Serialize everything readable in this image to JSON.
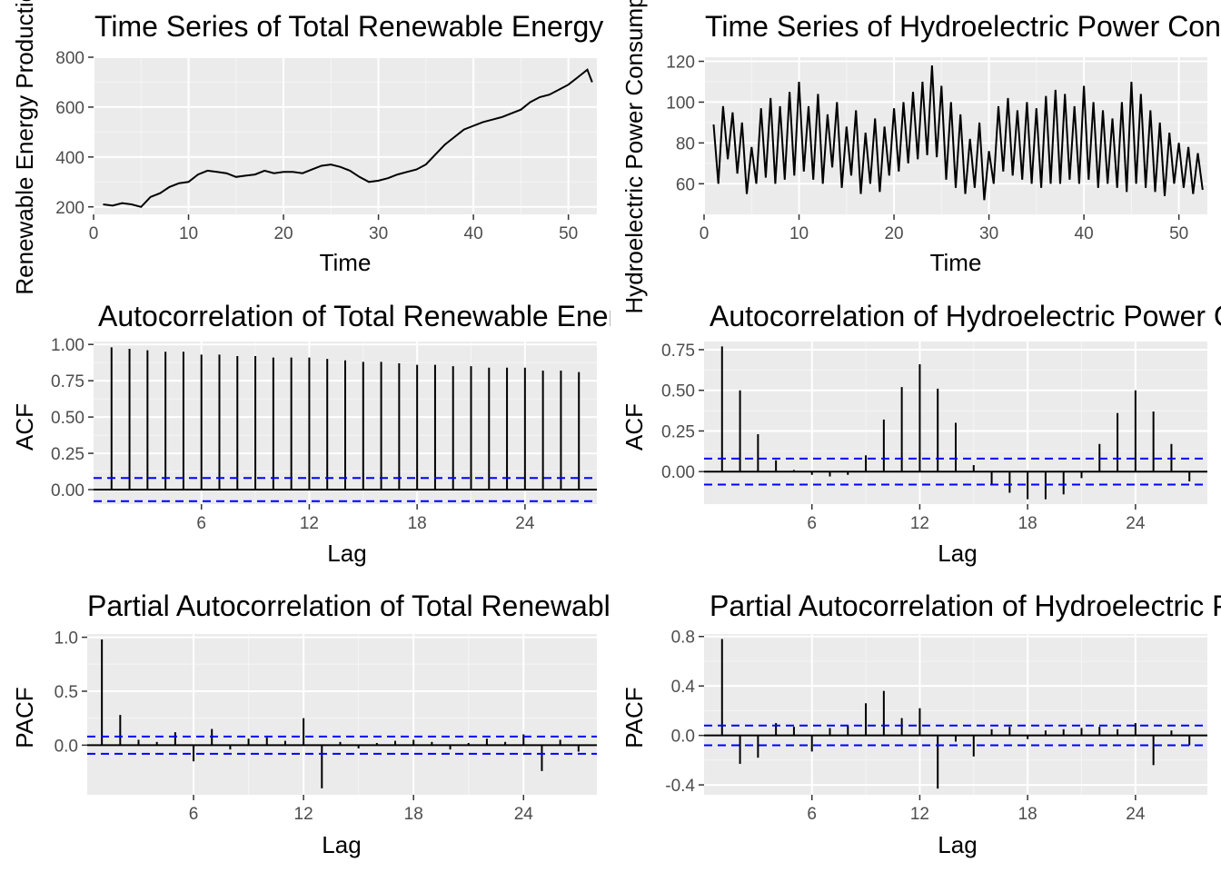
{
  "chart_data": [
    {
      "id": "ts_total",
      "type": "line",
      "title": "Time Series of Total Renewable Energy Production",
      "xlabel": "Time",
      "ylabel": "Renewable Energy Production",
      "xlim": [
        0,
        53
      ],
      "ylim": [
        170,
        800
      ],
      "xticks": [
        0,
        10,
        20,
        30,
        40,
        50
      ],
      "yticks": [
        200,
        400,
        600,
        800
      ],
      "series": [
        {
          "x": [
            1,
            2,
            3,
            4,
            5,
            6,
            7,
            8,
            9,
            10,
            11,
            12,
            13,
            14,
            15,
            16,
            17,
            18,
            19,
            20,
            21,
            22,
            23,
            24,
            25,
            26,
            27,
            28,
            29,
            30,
            31,
            32,
            33,
            34,
            35,
            36,
            37,
            38,
            39,
            40,
            41,
            42,
            43,
            44,
            45,
            46,
            47,
            48,
            49,
            50,
            51,
            52,
            52.5
          ],
          "values": [
            210,
            205,
            215,
            210,
            200,
            240,
            255,
            280,
            295,
            300,
            330,
            345,
            340,
            335,
            320,
            325,
            330,
            345,
            335,
            340,
            340,
            335,
            350,
            365,
            370,
            360,
            345,
            320,
            300,
            305,
            315,
            330,
            340,
            350,
            370,
            410,
            450,
            480,
            510,
            525,
            540,
            550,
            560,
            575,
            590,
            620,
            640,
            650,
            670,
            690,
            720,
            750,
            700
          ]
        }
      ]
    },
    {
      "id": "ts_hydro",
      "type": "line",
      "title": "Time Series of Hydroelectric Power Consumption",
      "xlabel": "Time",
      "ylabel": "Hydroelectric Power Consumption",
      "xlim": [
        0,
        53
      ],
      "ylim": [
        45,
        122
      ],
      "xticks": [
        0,
        10,
        20,
        30,
        40,
        50
      ],
      "yticks": [
        60,
        80,
        100,
        120
      ],
      "series": [
        {
          "x": [
            1,
            1.5,
            2,
            2.5,
            3,
            3.5,
            4,
            4.5,
            5,
            5.5,
            6,
            6.5,
            7,
            7.5,
            8,
            8.5,
            9,
            9.5,
            10,
            10.5,
            11,
            11.5,
            12,
            12.5,
            13,
            13.5,
            14,
            14.5,
            15,
            15.5,
            16,
            16.5,
            17,
            17.5,
            18,
            18.5,
            19,
            19.5,
            20,
            20.5,
            21,
            21.5,
            22,
            22.5,
            23,
            23.5,
            24,
            24.5,
            25,
            25.5,
            26,
            26.5,
            27,
            27.5,
            28,
            28.5,
            29,
            29.5,
            30,
            30.5,
            31,
            31.5,
            32,
            32.5,
            33,
            33.5,
            34,
            34.5,
            35,
            35.5,
            36,
            36.5,
            37,
            37.5,
            38,
            38.5,
            39,
            39.5,
            40,
            40.5,
            41,
            41.5,
            42,
            42.5,
            43,
            43.5,
            44,
            44.5,
            45,
            45.5,
            46,
            46.5,
            47,
            47.5,
            48,
            48.5,
            49,
            49.5,
            50,
            50.5,
            51,
            51.5,
            52,
            52.5
          ],
          "values": [
            89,
            60,
            98,
            72,
            95,
            65,
            90,
            55,
            78,
            60,
            97,
            63,
            102,
            60,
            98,
            62,
            105,
            64,
            110,
            66,
            98,
            62,
            104,
            60,
            94,
            68,
            100,
            58,
            88,
            64,
            96,
            55,
            85,
            60,
            92,
            56,
            88,
            64,
            97,
            66,
            100,
            70,
            105,
            72,
            110,
            74,
            118,
            73,
            108,
            62,
            100,
            58,
            94,
            55,
            82,
            58,
            90,
            52,
            76,
            60,
            98,
            66,
            102,
            64,
            96,
            62,
            100,
            60,
            97,
            58,
            103,
            60,
            106,
            60,
            104,
            62,
            98,
            60,
            108,
            62,
            100,
            58,
            96,
            60,
            92,
            58,
            100,
            56,
            110,
            60,
            104,
            58,
            96,
            56,
            90,
            54,
            85,
            60,
            80,
            58,
            78,
            55,
            75,
            57
          ]
        }
      ]
    },
    {
      "id": "acf_total",
      "type": "bar",
      "title": "Autocorrelation of Total Renewable Energy Production",
      "xlabel": "Lag",
      "ylabel": "ACF",
      "xlim": [
        0,
        28
      ],
      "ylim": [
        -0.1,
        1.02
      ],
      "xticks": [
        6,
        12,
        18,
        24
      ],
      "yticks": [
        0,
        0.25,
        0.5,
        0.75,
        1
      ],
      "ytick_labels": [
        "0.00",
        "0.25",
        "0.50",
        "0.75",
        "1.00"
      ],
      "conf": 0.08,
      "lags": [
        1,
        2,
        3,
        4,
        5,
        6,
        7,
        8,
        9,
        10,
        11,
        12,
        13,
        14,
        15,
        16,
        17,
        18,
        19,
        20,
        21,
        22,
        23,
        24,
        25,
        26,
        27
      ],
      "values": [
        0.98,
        0.97,
        0.96,
        0.95,
        0.95,
        0.93,
        0.93,
        0.92,
        0.92,
        0.91,
        0.91,
        0.91,
        0.9,
        0.89,
        0.88,
        0.88,
        0.87,
        0.86,
        0.86,
        0.85,
        0.85,
        0.84,
        0.84,
        0.84,
        0.82,
        0.82,
        0.81
      ]
    },
    {
      "id": "acf_hydro",
      "type": "bar",
      "title": "Autocorrelation of Hydroelectric Power Consumption",
      "xlabel": "Lag",
      "ylabel": "ACF",
      "xlim": [
        0,
        28
      ],
      "ylim": [
        -0.2,
        0.8
      ],
      "xticks": [
        6,
        12,
        18,
        24
      ],
      "yticks": [
        0,
        0.25,
        0.5,
        0.75
      ],
      "ytick_labels": [
        "0.00",
        "0.25",
        "0.50",
        "0.75"
      ],
      "conf": 0.08,
      "lags": [
        1,
        2,
        3,
        4,
        5,
        6,
        7,
        8,
        9,
        10,
        11,
        12,
        13,
        14,
        15,
        16,
        17,
        18,
        19,
        20,
        21,
        22,
        23,
        24,
        25,
        26,
        27
      ],
      "values": [
        0.77,
        0.5,
        0.23,
        0.07,
        0.01,
        -0.02,
        -0.03,
        -0.02,
        0.1,
        0.32,
        0.52,
        0.66,
        0.51,
        0.3,
        0.04,
        -0.08,
        -0.13,
        -0.17,
        -0.17,
        -0.14,
        -0.04,
        0.17,
        0.36,
        0.5,
        0.37,
        0.17,
        -0.06
      ]
    },
    {
      "id": "pacf_total",
      "type": "bar",
      "title": "Partial Autocorrelation of Total Renewable Energy Production",
      "xlabel": "Lag",
      "ylabel": "PACF",
      "xlim": [
        0.2,
        28
      ],
      "ylim": [
        -0.46,
        1.03
      ],
      "xticks": [
        6,
        12,
        18,
        24
      ],
      "yticks": [
        0,
        0.5,
        1
      ],
      "ytick_labels": [
        "0.0",
        "0.5",
        "1.0"
      ],
      "conf": 0.08,
      "lags": [
        1,
        2,
        3,
        4,
        5,
        6,
        7,
        8,
        9,
        10,
        11,
        12,
        13,
        14,
        15,
        16,
        17,
        18,
        19,
        20,
        21,
        22,
        23,
        24,
        25,
        26,
        27
      ],
      "values": [
        0.98,
        0.28,
        0.05,
        0.03,
        0.12,
        -0.15,
        0.15,
        -0.04,
        0.06,
        0.07,
        0.04,
        0.25,
        -0.4,
        0.03,
        -0.03,
        0.02,
        0.04,
        0.05,
        0.03,
        -0.04,
        0.02,
        0.06,
        0.03,
        0.1,
        -0.24,
        0.05,
        -0.06
      ]
    },
    {
      "id": "pacf_hydro",
      "type": "bar",
      "title": "Partial Autocorrelation of Hydroelectric Power Consumption",
      "xlabel": "Lag",
      "ylabel": "PACF",
      "xlim": [
        0,
        28
      ],
      "ylim": [
        -0.48,
        0.82
      ],
      "xticks": [
        6,
        12,
        18,
        24
      ],
      "yticks": [
        -0.4,
        0,
        0.4,
        0.8
      ],
      "ytick_labels": [
        "-0.4",
        "0.0",
        "0.4",
        "0.8"
      ],
      "conf": 0.08,
      "lags": [
        1,
        2,
        3,
        4,
        5,
        6,
        7,
        8,
        9,
        10,
        11,
        12,
        13,
        14,
        15,
        16,
        17,
        18,
        19,
        20,
        21,
        22,
        23,
        24,
        25,
        26,
        27
      ],
      "values": [
        0.78,
        -0.23,
        -0.18,
        0.1,
        0.07,
        -0.13,
        0.06,
        0.08,
        0.26,
        0.36,
        0.14,
        0.22,
        -0.43,
        -0.05,
        -0.17,
        0.05,
        0.07,
        -0.03,
        0.04,
        0.05,
        0.06,
        0.07,
        0.05,
        0.1,
        -0.24,
        0.04,
        -0.08
      ]
    }
  ]
}
